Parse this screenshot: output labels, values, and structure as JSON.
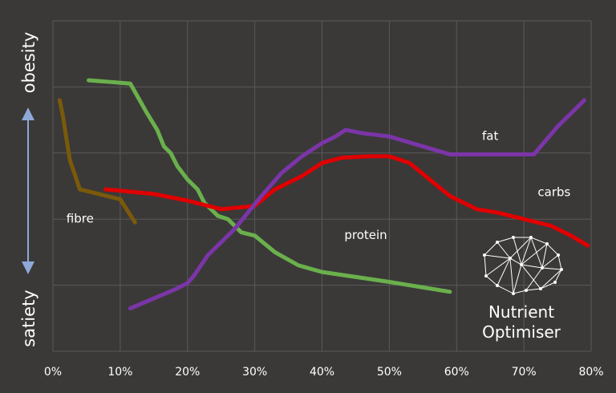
{
  "chart_data": {
    "type": "line",
    "title": "",
    "xlabel": "",
    "ylabel": "",
    "xlim": [
      0,
      80
    ],
    "ylim": [
      0,
      5
    ],
    "x_ticks": [
      "0%",
      "10%",
      "20%",
      "30%",
      "40%",
      "50%",
      "60%",
      "70%",
      "80%"
    ],
    "y_axis_top_label": "obesity",
    "y_axis_bottom_label": "satiety",
    "grid": true,
    "series": [
      {
        "name": "fibre",
        "color": "#7a5a0a",
        "points": [
          [
            1,
            3.8
          ],
          [
            1.5,
            3.55
          ],
          [
            2.5,
            2.9
          ],
          [
            4,
            2.45
          ],
          [
            6,
            2.4
          ],
          [
            8,
            2.35
          ],
          [
            10,
            2.3
          ],
          [
            12.2,
            1.95
          ]
        ]
      },
      {
        "name": "protein",
        "color": "#6ab04c",
        "points": [
          [
            5.3,
            4.1
          ],
          [
            8,
            4.08
          ],
          [
            11.5,
            4.05
          ],
          [
            14,
            3.6
          ],
          [
            15.5,
            3.35
          ],
          [
            16.5,
            3.1
          ],
          [
            17.5,
            3.0
          ],
          [
            18.5,
            2.8
          ],
          [
            20,
            2.6
          ],
          [
            21.5,
            2.45
          ],
          [
            22.5,
            2.25
          ],
          [
            24.5,
            2.05
          ],
          [
            26,
            2.0
          ],
          [
            27,
            1.9
          ],
          [
            28,
            1.8
          ],
          [
            30,
            1.75
          ],
          [
            33,
            1.5
          ],
          [
            36.5,
            1.3
          ],
          [
            40,
            1.2
          ],
          [
            50,
            1.05
          ],
          [
            59,
            0.9
          ]
        ]
      },
      {
        "name": "carbs",
        "color": "#e00000",
        "points": [
          [
            7.8,
            2.45
          ],
          [
            10,
            2.43
          ],
          [
            15,
            2.38
          ],
          [
            20,
            2.28
          ],
          [
            25,
            2.15
          ],
          [
            30,
            2.2
          ],
          [
            33,
            2.45
          ],
          [
            37,
            2.65
          ],
          [
            40,
            2.85
          ],
          [
            43,
            2.93
          ],
          [
            47,
            2.95
          ],
          [
            50,
            2.95
          ],
          [
            53,
            2.85
          ],
          [
            56,
            2.6
          ],
          [
            59,
            2.35
          ],
          [
            63,
            2.15
          ],
          [
            66,
            2.1
          ],
          [
            70,
            2.0
          ],
          [
            74,
            1.9
          ],
          [
            77,
            1.75
          ],
          [
            79.5,
            1.6
          ]
        ]
      },
      {
        "name": "fat",
        "color": "#7b35a8",
        "points": [
          [
            11.5,
            0.65
          ],
          [
            15,
            0.8
          ],
          [
            18,
            0.93
          ],
          [
            20,
            1.03
          ],
          [
            21,
            1.15
          ],
          [
            22,
            1.3
          ],
          [
            23,
            1.45
          ],
          [
            25,
            1.65
          ],
          [
            27,
            1.85
          ],
          [
            29,
            2.1
          ],
          [
            31,
            2.35
          ],
          [
            34,
            2.7
          ],
          [
            37,
            2.95
          ],
          [
            40,
            3.15
          ],
          [
            42,
            3.25
          ],
          [
            43.5,
            3.35
          ],
          [
            46,
            3.3
          ],
          [
            50,
            3.25
          ],
          [
            55,
            3.1
          ],
          [
            59,
            2.98
          ],
          [
            66,
            2.98
          ],
          [
            71.5,
            2.98
          ],
          [
            75,
            3.4
          ],
          [
            79,
            3.8
          ]
        ]
      }
    ]
  },
  "logo": {
    "line1": "Nutrient",
    "line2": "Optimiser"
  }
}
